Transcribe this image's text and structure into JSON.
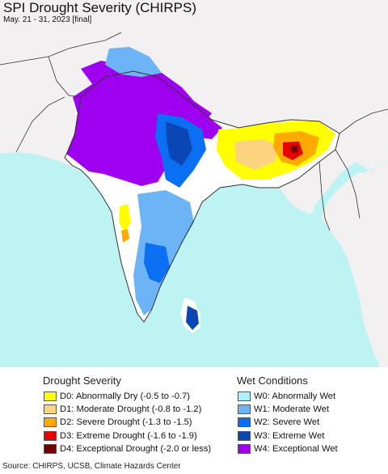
{
  "map": {
    "title": "SPI Drought Severity (CHIRPS)",
    "subtitle": "May. 21 - 31, 2023 [final]",
    "colors": {
      "ocean": "#bdf3f2",
      "land": "#f2f0f0",
      "india": "#ffffff",
      "border": "#333333"
    }
  },
  "legend": {
    "drought": {
      "title": "Drought Severity",
      "items": [
        {
          "label": "D0: Abnormally Dry (-0.5 to -0.7)",
          "color": "#ffff00"
        },
        {
          "label": "D1: Moderate Drought (-0.8 to -1.2)",
          "color": "#fcd37f"
        },
        {
          "label": "D2: Severe Drought (-1.3 to -1.5)",
          "color": "#ffaa00"
        },
        {
          "label": "D3: Extreme Drought (-1.6 to -1.9)",
          "color": "#e60000"
        },
        {
          "label": "D4: Exceptional Drought (-2.0 or less)",
          "color": "#730000"
        }
      ]
    },
    "wet": {
      "title": "Wet Conditions",
      "items": [
        {
          "label": "W0: Abnormally Wet",
          "color": "#aaf0ff"
        },
        {
          "label": "W1: Moderate Wet",
          "color": "#6db4f6"
        },
        {
          "label": "W2: Severe Wet",
          "color": "#0a6ff0"
        },
        {
          "label": "W3: Extreme Wet",
          "color": "#0a46b4"
        },
        {
          "label": "W4: Exceptional Wet",
          "color": "#a000f0"
        }
      ]
    }
  },
  "source": "Source: CHIRPS, UCSB, Climate Hazards Center"
}
